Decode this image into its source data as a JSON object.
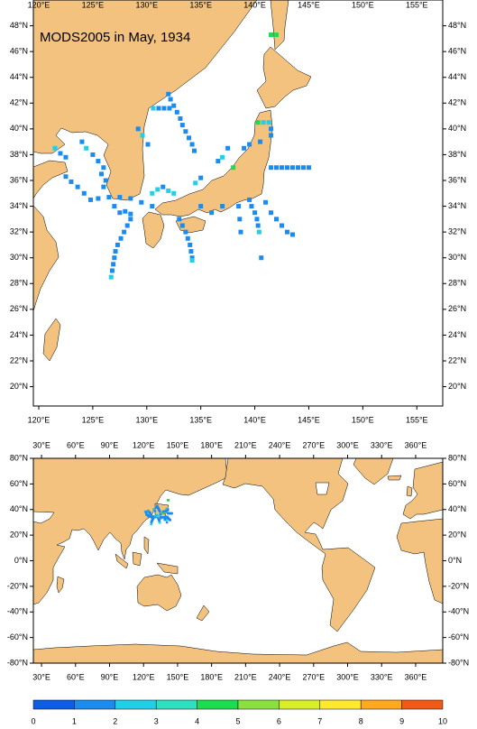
{
  "top_map": {
    "title": "MODS2005 in May, 1934",
    "xlim": [
      119.5,
      157.4
    ],
    "ylim": [
      18.5,
      50
    ],
    "xticks": [
      {
        "value": 120,
        "label": "120°E"
      },
      {
        "value": 125,
        "label": "125°E"
      },
      {
        "value": 130,
        "label": "130°E"
      },
      {
        "value": 135,
        "label": "135°E"
      },
      {
        "value": 140,
        "label": "140°E"
      },
      {
        "value": 145,
        "label": "145°E"
      },
      {
        "value": 150,
        "label": "150°E"
      },
      {
        "value": 155,
        "label": "155°E"
      }
    ],
    "yticks": [
      {
        "value": 20,
        "label": "20°N"
      },
      {
        "value": 22,
        "label": "22°N"
      },
      {
        "value": 24,
        "label": "24°N"
      },
      {
        "value": 26,
        "label": "26°N"
      },
      {
        "value": 28,
        "label": "28°N"
      },
      {
        "value": 30,
        "label": "30°N"
      },
      {
        "value": 32,
        "label": "32°N"
      },
      {
        "value": 34,
        "label": "34°N"
      },
      {
        "value": 36,
        "label": "36°N"
      },
      {
        "value": 38,
        "label": "38°N"
      },
      {
        "value": 40,
        "label": "40°N"
      },
      {
        "value": 42,
        "label": "42°N"
      },
      {
        "value": 44,
        "label": "44°N"
      },
      {
        "value": 46,
        "label": "46°N"
      },
      {
        "value": 48,
        "label": "48°N"
      }
    ]
  },
  "bottom_map": {
    "xlim": [
      22.8,
      383.9
    ],
    "ylim": [
      -80,
      80
    ],
    "xticks": [
      {
        "value": 30,
        "label": "30°E"
      },
      {
        "value": 60,
        "label": "60°E"
      },
      {
        "value": 90,
        "label": "90°E"
      },
      {
        "value": 120,
        "label": "120°E"
      },
      {
        "value": 150,
        "label": "150°E"
      },
      {
        "value": 180,
        "label": "180°E"
      },
      {
        "value": 210,
        "label": "210°E"
      },
      {
        "value": 240,
        "label": "240°E"
      },
      {
        "value": 270,
        "label": "270°E"
      },
      {
        "value": 300,
        "label": "300°E"
      },
      {
        "value": 330,
        "label": "330°E"
      },
      {
        "value": 360,
        "label": "360°E"
      }
    ],
    "yticks": [
      {
        "value": -80,
        "label": "-80°N"
      },
      {
        "value": -60,
        "label": "-60°N"
      },
      {
        "value": -40,
        "label": "-40°N"
      },
      {
        "value": -20,
        "label": "-20°N"
      },
      {
        "value": 0,
        "label": "0°N"
      },
      {
        "value": 20,
        "label": "20°N"
      },
      {
        "value": 40,
        "label": "40°N"
      },
      {
        "value": 60,
        "label": "60°N"
      },
      {
        "value": 80,
        "label": "80°N"
      }
    ]
  },
  "colorbar": {
    "ticks": [
      0,
      1,
      2,
      3,
      4,
      5,
      6,
      7,
      8,
      9,
      10
    ],
    "colors": [
      "#0c5fe4",
      "#1b8cee",
      "#22cfe6",
      "#2ee0c0",
      "#1edc50",
      "#8ae040",
      "#d8ee2a",
      "#ffe830",
      "#ffa820",
      "#f05a18"
    ]
  },
  "observations": {
    "lon": [
      132.0,
      132.2,
      132.5,
      132.8,
      133.1,
      133.3,
      133.6,
      133.9,
      134.2,
      134.4,
      130.6,
      131.1,
      131.6,
      132.1,
      129.2,
      129.6,
      130.1,
      124.0,
      124.4,
      125.0,
      125.5,
      126.0,
      125.8,
      126.2,
      126.0,
      121.5,
      122.0,
      122.5,
      122.5,
      123.0,
      123.6,
      124.2,
      124.8,
      125.5,
      126.5,
      127.5,
      128.5,
      129.5,
      130.5,
      127.0,
      127.5,
      128.0,
      128.5,
      128.5,
      128.2,
      127.9,
      127.6,
      127.3,
      127.1,
      127.0,
      126.9,
      126.8,
      126.7,
      133.0,
      133.3,
      133.6,
      133.8,
      134.0,
      134.1,
      134.2,
      134.2,
      130.5,
      131.0,
      131.5,
      132.0,
      132.5,
      141.5,
      142.0,
      142.5,
      143.0,
      143.5,
      144.0,
      144.5,
      145.0,
      140.3,
      140.8,
      141.3,
      141.5,
      141.5,
      140.5,
      139.5,
      139.0,
      139.5,
      139.7,
      140.0,
      140.2,
      140.3,
      140.4,
      140.6,
      141.0,
      141.5,
      142.0,
      142.5,
      143.0,
      143.5,
      138.5,
      138.6,
      138.7,
      141.5,
      142.0,
      136.6,
      137.0,
      137.5,
      138.0,
      134.5,
      135.0,
      135.0,
      136.0,
      137.0
    ],
    "lat": [
      42.7,
      42.3,
      41.8,
      41.3,
      40.8,
      40.3,
      39.8,
      39.3,
      38.8,
      38.3,
      41.6,
      41.6,
      41.6,
      41.6,
      40.0,
      39.5,
      38.8,
      39.0,
      38.5,
      38.0,
      37.5,
      37.0,
      36.5,
      36.0,
      35.5,
      38.5,
      38.1,
      37.8,
      36.3,
      35.9,
      35.5,
      35.0,
      34.5,
      34.6,
      34.7,
      34.7,
      34.6,
      34.3,
      34.0,
      34.0,
      33.5,
      33.6,
      33.4,
      33.0,
      32.5,
      32.0,
      31.5,
      31.0,
      30.5,
      30.0,
      29.5,
      29.0,
      28.5,
      33.0,
      32.5,
      32.0,
      31.5,
      31.0,
      30.5,
      30.0,
      29.8,
      35.0,
      35.3,
      35.5,
      35.2,
      35.0,
      37.0,
      37.0,
      37.0,
      37.0,
      37.0,
      37.0,
      37.0,
      37.0,
      40.5,
      40.5,
      40.5,
      40.0,
      39.5,
      39.0,
      38.8,
      38.5,
      34.5,
      34.0,
      33.5,
      33.0,
      32.5,
      32.0,
      30.0,
      34.3,
      33.5,
      33.0,
      32.5,
      32.0,
      31.8,
      34.0,
      33.0,
      32.0,
      47.3,
      47.3,
      37.5,
      37.8,
      38.5,
      37.0,
      35.8,
      36.2,
      34.0,
      33.5,
      34.0
    ],
    "values": [
      1,
      1,
      1,
      1,
      1,
      1,
      1,
      1,
      1,
      1,
      2.5,
      1,
      1,
      1,
      1,
      2.5,
      1,
      1,
      2.5,
      1,
      1,
      1,
      1,
      1,
      1,
      2.5,
      1,
      1,
      1,
      1,
      1,
      1,
      1,
      1,
      1,
      1,
      1,
      1,
      1,
      1,
      1,
      1,
      1,
      1,
      1,
      1,
      1,
      1,
      1,
      1,
      1,
      1,
      2.5,
      1,
      1,
      1,
      1,
      1,
      1,
      1,
      2.5,
      2.5,
      2.5,
      1,
      2.5,
      2.5,
      1,
      1,
      1,
      1,
      1,
      1,
      1,
      1,
      4.2,
      2.5,
      2.5,
      1,
      1,
      1,
      1,
      1,
      1,
      1,
      1,
      1,
      1,
      2.5,
      1,
      1,
      1,
      1,
      1,
      1,
      1,
      1,
      1,
      1,
      4.2,
      4.2,
      1,
      2.5,
      1,
      4.2,
      2.5,
      1,
      1,
      1,
      1
    ]
  }
}
